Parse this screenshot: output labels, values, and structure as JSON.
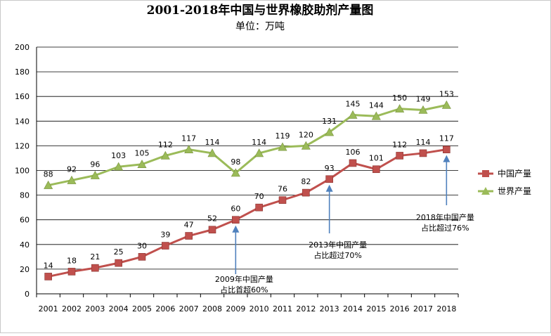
{
  "colors": {
    "china": "#c0504d",
    "world": "#9bbb59",
    "arrow": "#4f81bd",
    "grid": "#000000"
  },
  "chart_data": {
    "type": "line",
    "title": "2001-2018年中国与世界橡胶助剂产量图",
    "subtitle": "单位：万吨",
    "xlabel": "",
    "ylabel": "",
    "ylim": [
      0,
      200
    ],
    "yticks": [
      0,
      20,
      40,
      60,
      80,
      100,
      120,
      140,
      160,
      180,
      200
    ],
    "grid": true,
    "legend_position": "right",
    "categories": [
      "2001",
      "2002",
      "2003",
      "2004",
      "2005",
      "2006",
      "2007",
      "2008",
      "2009",
      "2010",
      "2011",
      "2012",
      "2013",
      "2014",
      "2015",
      "2016",
      "2017",
      "2018"
    ],
    "series": [
      {
        "name": "中国产量",
        "marker": "square",
        "values": [
          14,
          18,
          21,
          25,
          30,
          39,
          47,
          52,
          60,
          70,
          76,
          82,
          93,
          106,
          101,
          112,
          114,
          117
        ]
      },
      {
        "name": "世界产量",
        "marker": "triangle",
        "values": [
          88,
          92,
          96,
          103,
          105,
          112,
          117,
          114,
          98,
          114,
          119,
          120,
          131,
          145,
          144,
          150,
          149,
          153
        ]
      }
    ],
    "annotations": [
      {
        "category": "2009",
        "lines": [
          "2009年中国产量",
          "占比首超60%"
        ]
      },
      {
        "category": "2013",
        "lines": [
          "2013年中国产量",
          "占比超过70%"
        ]
      },
      {
        "category": "2018",
        "lines": [
          "2018年中国产量",
          "占比超过76%"
        ]
      }
    ]
  }
}
